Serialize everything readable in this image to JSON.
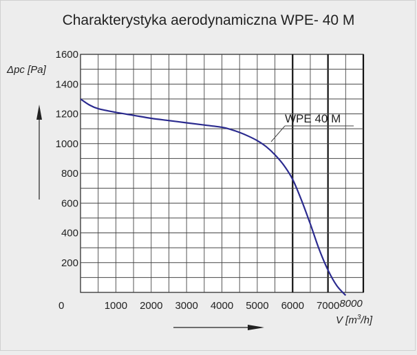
{
  "chart_data": {
    "type": "line",
    "title": "Charakterystyka aerodynamiczna WPE- 40 M",
    "ylabel": "Δpc [Pa]",
    "xlabel_main": "V [m",
    "xlabel_sup": "3",
    "xlabel_end": "/h]",
    "xlim": [
      0,
      8000
    ],
    "ylim": [
      0,
      1600
    ],
    "origin_label": "0",
    "x_ticks": [
      "1000",
      "2000",
      "3000",
      "4000",
      "5000",
      "6000",
      "7000",
      "8000"
    ],
    "y_ticks": [
      "1600",
      "1400",
      "1200",
      "1000",
      "800",
      "600",
      "400",
      "200"
    ],
    "x_tick_values": [
      1000,
      2000,
      3000,
      4000,
      5000,
      6000,
      7000,
      8000
    ],
    "y_tick_values": [
      1600,
      1400,
      1200,
      1000,
      800,
      600,
      400,
      200
    ],
    "x_minor_step": 500,
    "y_minor_step": 100,
    "bold_x_lines": [
      6000,
      7000,
      8000
    ],
    "grid": true,
    "series": [
      {
        "name": "WPE 40 M",
        "color": "#2b2b8f",
        "x": [
          0,
          250,
          500,
          1000,
          1500,
          2000,
          2500,
          3000,
          3500,
          4000,
          4250,
          4500,
          4750,
          5000,
          5250,
          5500,
          5750,
          6000,
          6250,
          6500,
          6750,
          7000,
          7250,
          7500
        ],
        "y": [
          1300,
          1260,
          1235,
          1210,
          1190,
          1170,
          1155,
          1140,
          1125,
          1110,
          1095,
          1075,
          1050,
          1020,
          980,
          925,
          855,
          760,
          620,
          460,
          290,
          150,
          45,
          -20
        ]
      }
    ]
  }
}
